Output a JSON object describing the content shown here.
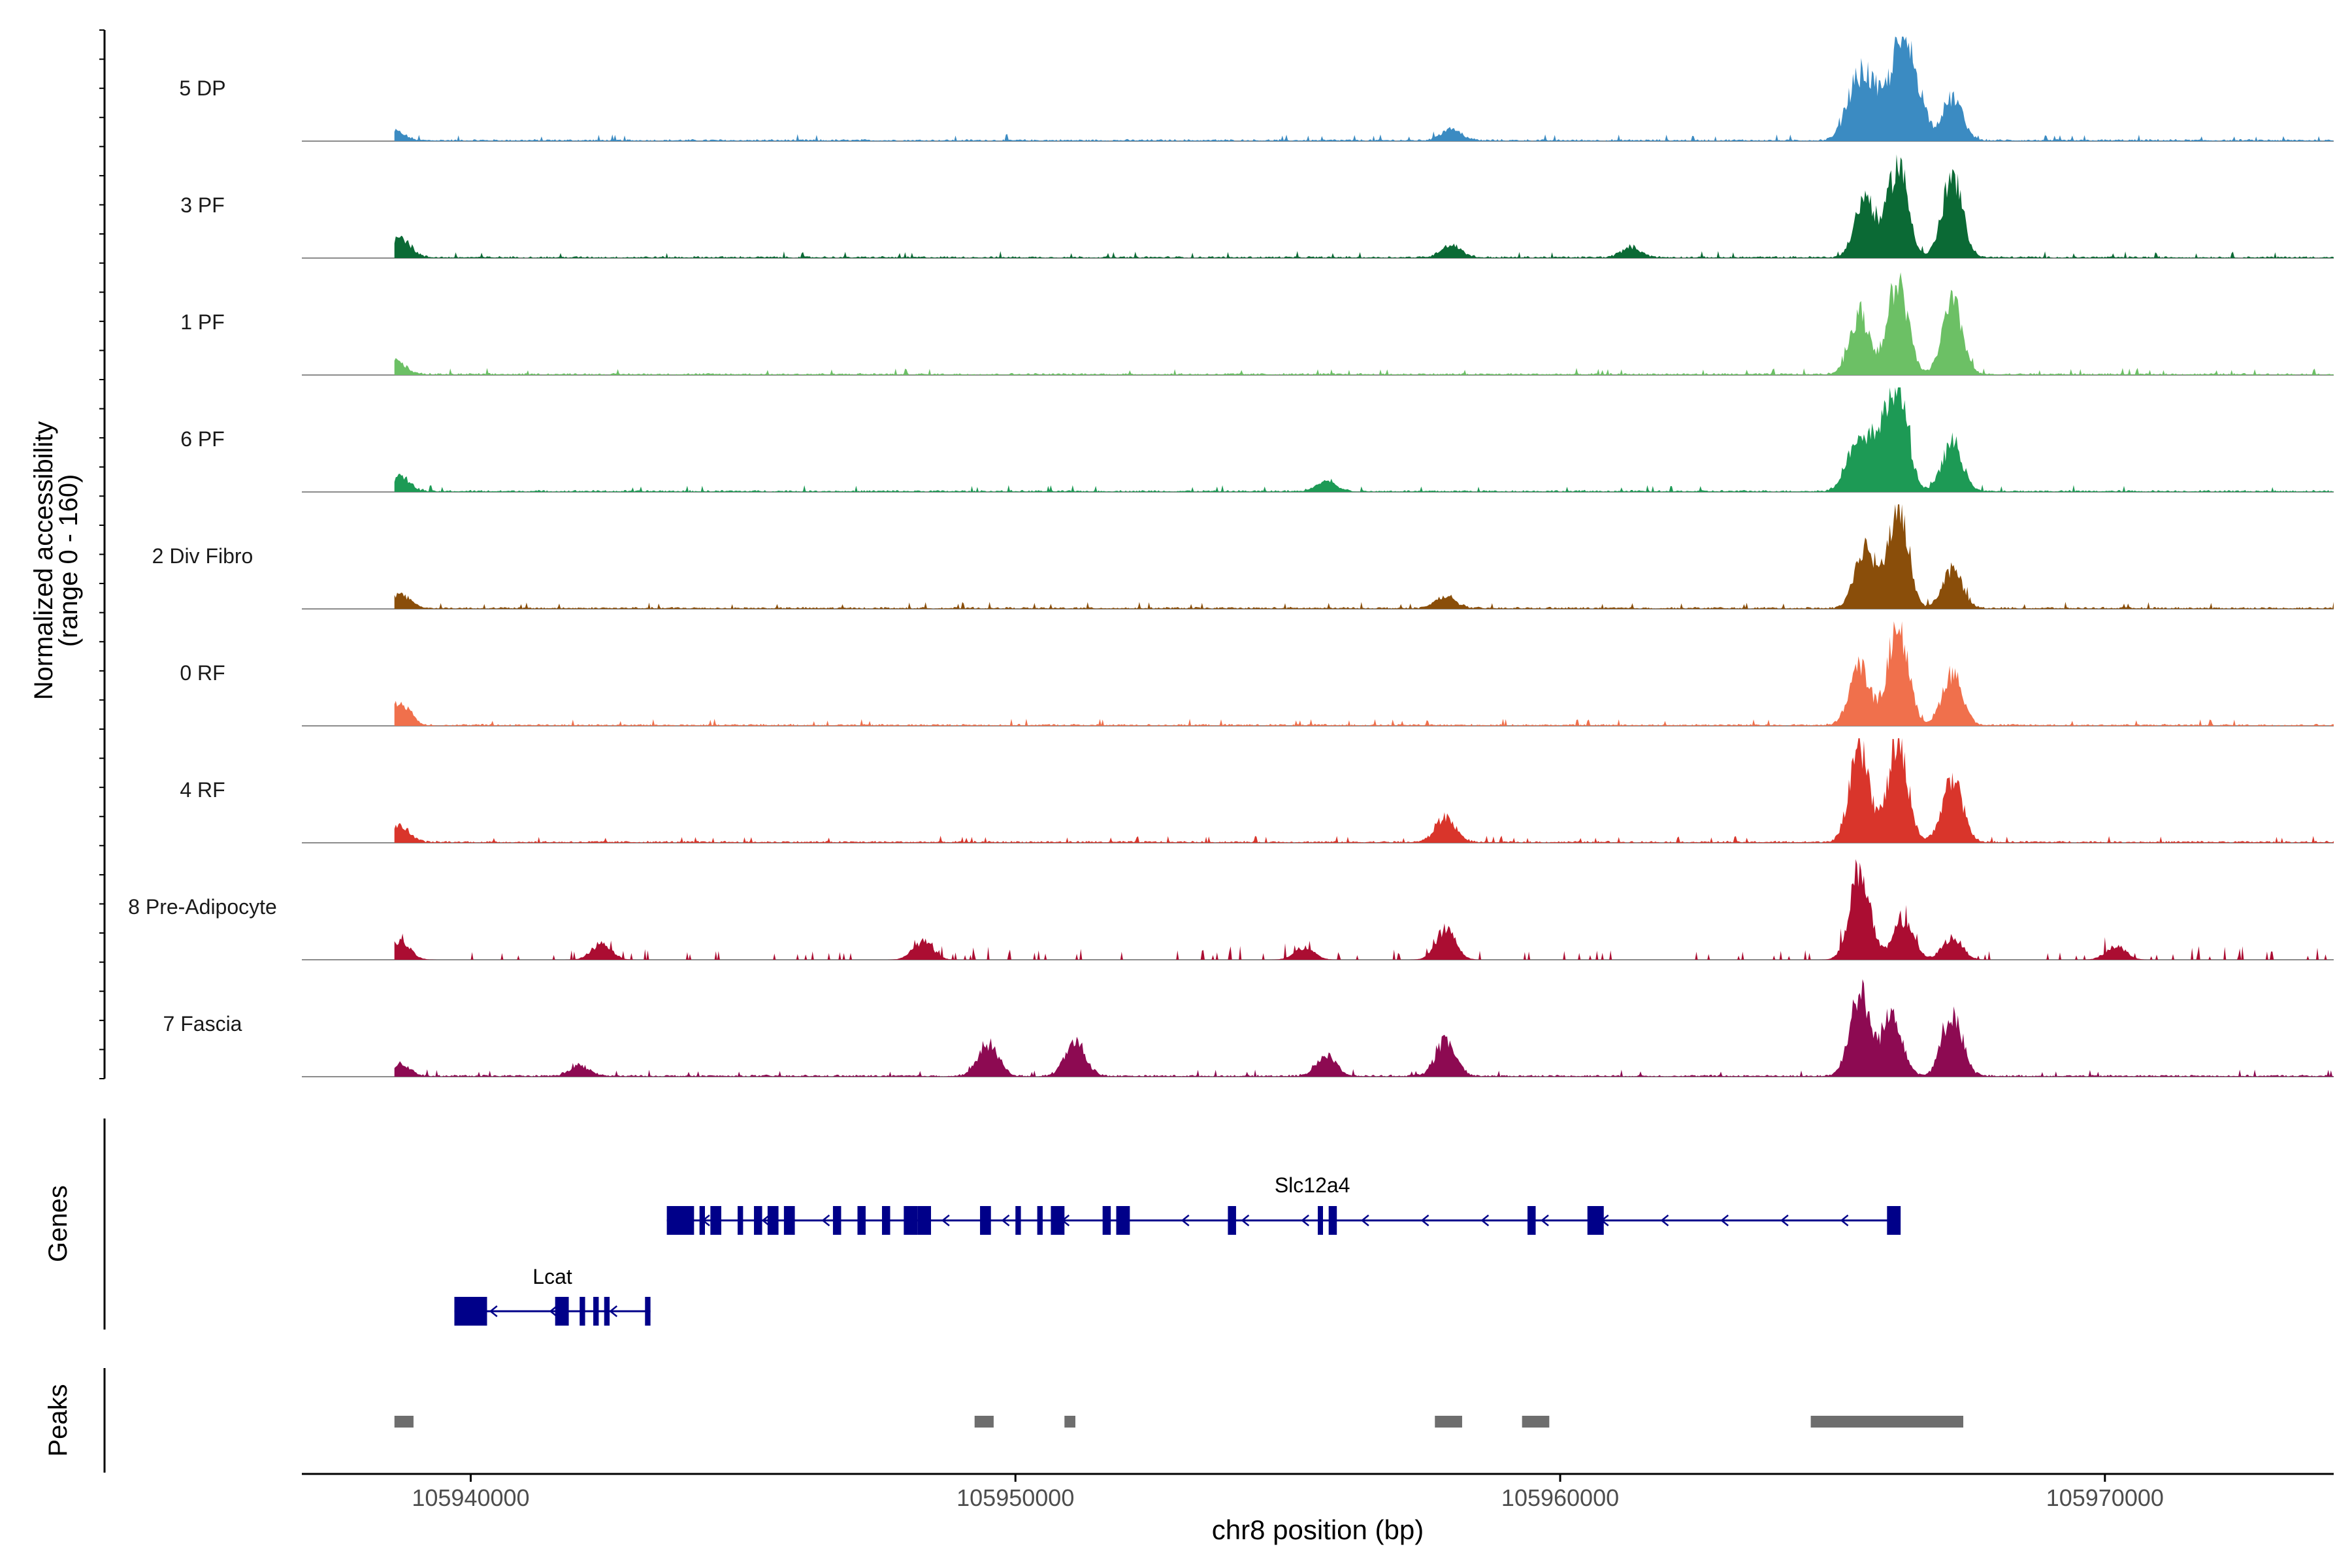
{
  "chart_data": {
    "type": "area",
    "chromosome": "chr8",
    "xlabel": "chr8 position (bp)",
    "ylabel_line1": "Normalized accessibility",
    "ylabel_line2": "(range 0 - 160)",
    "yrange": [
      0,
      160
    ],
    "xlim": [
      105936900,
      105974200
    ],
    "xticks": [
      105940000,
      105950000,
      105960000,
      105970000
    ],
    "xtick_labels": [
      "105940000",
      "105950000",
      "105960000",
      "105970000"
    ],
    "panel_labels": {
      "genes": "Genes",
      "peaks": "Peaks"
    },
    "background_spans": [
      [
        105938600,
        105974200
      ]
    ],
    "tracks": [
      {
        "name": "5 DP",
        "color": "#3b8bc2",
        "peaks": [
          [
            105938600,
            9
          ],
          [
            105958000,
            12
          ],
          [
            105965400,
            45
          ],
          [
            105965700,
            48
          ],
          [
            105966200,
            78
          ],
          [
            105966500,
            55
          ],
          [
            105967200,
            42
          ]
        ]
      },
      {
        "name": "3 PF",
        "color": "#0b6a35",
        "peaks": [
          [
            105938700,
            20
          ],
          [
            105958000,
            12
          ],
          [
            105961300,
            10
          ],
          [
            105965600,
            60
          ],
          [
            105966200,
            92
          ],
          [
            105967200,
            78
          ]
        ]
      },
      {
        "name": "1 PF",
        "color": "#6cc065",
        "peaks": [
          [
            105938600,
            14
          ],
          [
            105965500,
            60
          ],
          [
            105966200,
            90
          ],
          [
            105967200,
            70
          ]
        ]
      },
      {
        "name": "6 PF",
        "color": "#1d9a55",
        "peaks": [
          [
            105938700,
            14
          ],
          [
            105955700,
            10
          ],
          [
            105965400,
            40
          ],
          [
            105965800,
            48
          ],
          [
            105966200,
            102
          ],
          [
            105967200,
            48
          ]
        ]
      },
      {
        "name": "2 Div Fibro",
        "color": "#8a4e0a",
        "peaks": [
          [
            105938700,
            14
          ],
          [
            105957900,
            12
          ],
          [
            105965600,
            60
          ],
          [
            105966200,
            100
          ],
          [
            105967200,
            38
          ]
        ]
      },
      {
        "name": "0 RF",
        "color": "#f0704c",
        "peaks": [
          [
            105938700,
            22
          ],
          [
            105965500,
            58
          ],
          [
            105966200,
            100
          ],
          [
            105967200,
            52
          ]
        ]
      },
      {
        "name": "4 RF",
        "color": "#d9352b",
        "peaks": [
          [
            105938700,
            16
          ],
          [
            105957900,
            24
          ],
          [
            105965500,
            90
          ],
          [
            105966200,
            96
          ],
          [
            105967200,
            62
          ]
        ]
      },
      {
        "name": "8 Pre-Adipocyte",
        "color": "#ab0d32",
        "peaks": [
          [
            105938700,
            18
          ],
          [
            105942400,
            16
          ],
          [
            105948300,
            18
          ],
          [
            105955300,
            12
          ],
          [
            105957900,
            30
          ],
          [
            105965500,
            90
          ],
          [
            105966300,
            40
          ],
          [
            105967200,
            22
          ],
          [
            105970200,
            14
          ]
        ]
      },
      {
        "name": "7 Fascia",
        "color": "#8d0a52",
        "peaks": [
          [
            105938700,
            12
          ],
          [
            105942000,
            10
          ],
          [
            105949500,
            32
          ],
          [
            105951100,
            34
          ],
          [
            105955700,
            20
          ],
          [
            105957900,
            34
          ],
          [
            105965500,
            82
          ],
          [
            105966100,
            62
          ],
          [
            105967200,
            62
          ]
        ]
      }
    ],
    "genes": [
      {
        "name": "Slc12a4",
        "start": 105943600,
        "end": 105966100,
        "strand": "-",
        "exons": [
          [
            105943600,
            105944100
          ],
          [
            105944200,
            105944300
          ],
          [
            105944400,
            105944600
          ],
          [
            105944900,
            105945000
          ],
          [
            105945200,
            105945350
          ],
          [
            105945450,
            105945650
          ],
          [
            105945750,
            105945950
          ],
          [
            105946650,
            105946800
          ],
          [
            105947100,
            105947250
          ],
          [
            105947550,
            105947700
          ],
          [
            105947950,
            105948200
          ],
          [
            105948200,
            105948450
          ],
          [
            105949350,
            105949550
          ],
          [
            105950000,
            105950100
          ],
          [
            105950400,
            105950500
          ],
          [
            105950650,
            105950900
          ],
          [
            105951600,
            105951750
          ],
          [
            105951850,
            105952100
          ],
          [
            105953900,
            105954050
          ],
          [
            105955550,
            105955600
          ],
          [
            105955750,
            105955900
          ],
          [
            105959400,
            105959550
          ],
          [
            105960500,
            105960800
          ],
          [
            105966000,
            105966250
          ]
        ]
      },
      {
        "name": "Lcat",
        "start": 105939700,
        "end": 105943300,
        "strand": "-",
        "exons": [
          [
            105939700,
            105940300
          ],
          [
            105941550,
            105941800
          ],
          [
            105942000,
            105942100
          ],
          [
            105942250,
            105942350
          ],
          [
            105942450,
            105942550
          ],
          [
            105943200,
            105943300
          ]
        ]
      }
    ],
    "peaks": [
      [
        105938600,
        105938950
      ],
      [
        105949250,
        105949600
      ],
      [
        105950900,
        105951100
      ],
      [
        105957700,
        105958200
      ],
      [
        105959300,
        105959800
      ],
      [
        105964600,
        105967400
      ]
    ]
  }
}
